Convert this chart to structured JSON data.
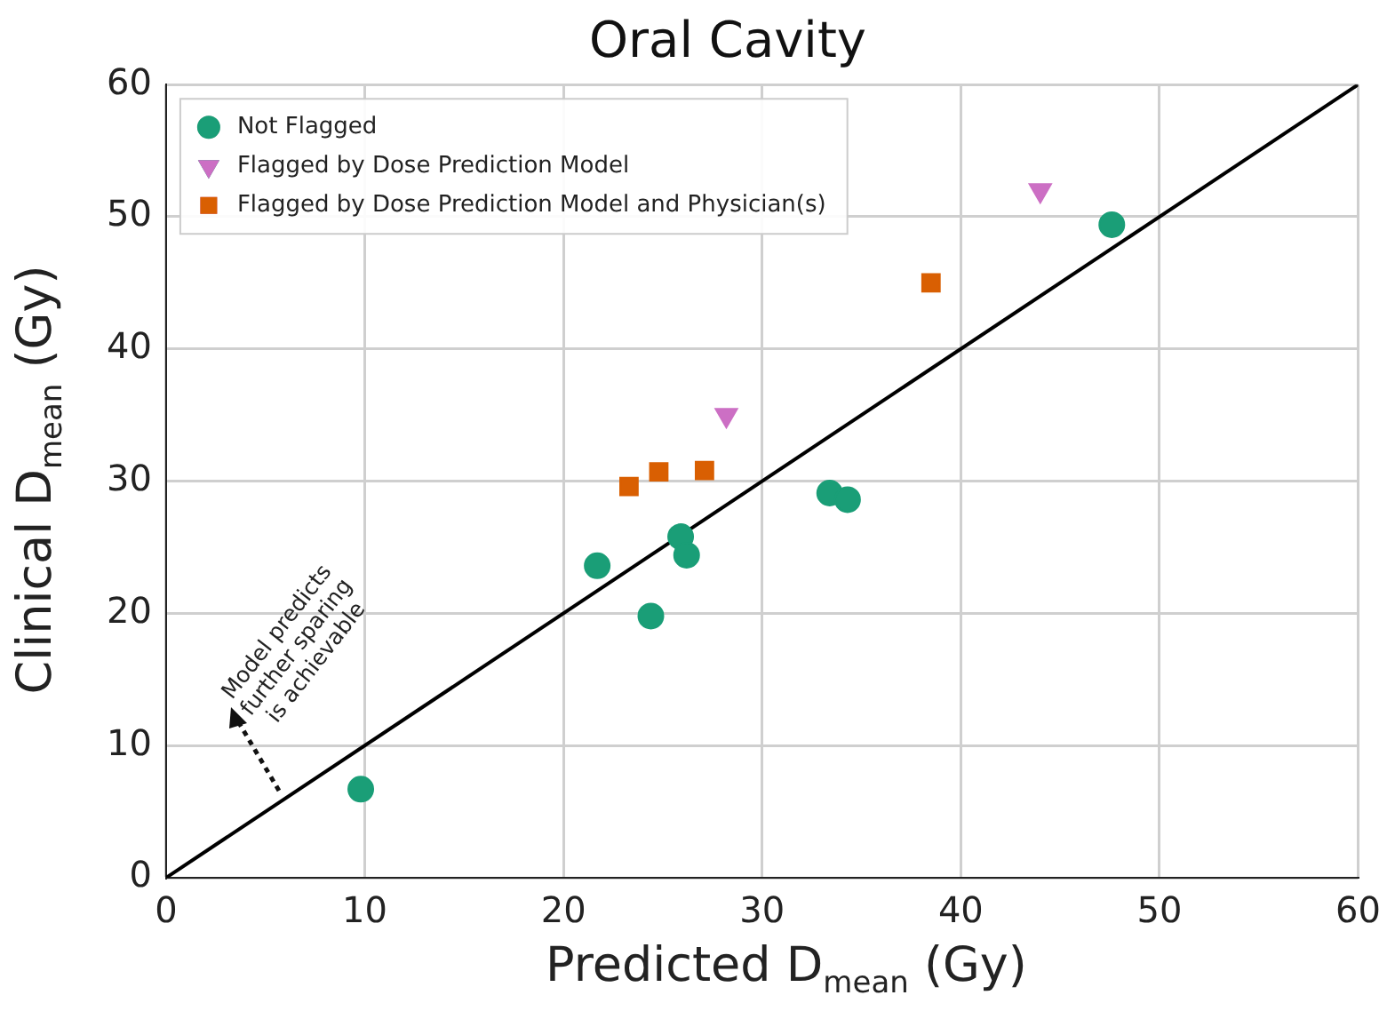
{
  "chart_data": {
    "type": "scatter",
    "title": "Oral Cavity",
    "xlabel": "Predicted D$_{mean}$ (Gy)",
    "ylabel": "Clinical D$_{mean}$ (Gy)",
    "xlim": [
      0,
      60
    ],
    "ylim": [
      0,
      60
    ],
    "xticks": [
      0,
      10,
      20,
      30,
      40,
      50,
      60
    ],
    "yticks": [
      0,
      10,
      20,
      30,
      40,
      50,
      60
    ],
    "grid": true,
    "legend": "top left",
    "annotations": [
      "Model predicts\nfurther sparing\nis achievable"
    ],
    "series": [
      {
        "name": "Not Flagged",
        "color": "#1a9e77",
        "marker": "circle",
        "x": [
          9.8,
          21.7,
          24.4,
          25.9,
          26.2,
          33.4,
          34.3,
          47.6
        ],
        "values": [
          6.7,
          23.6,
          19.8,
          25.8,
          24.4,
          29.1,
          28.6,
          49.4
        ]
      },
      {
        "name": "Flagged by Dose Prediction Model",
        "color": "#cc6fc4",
        "marker": "triangle",
        "x": [
          28.2,
          44.0
        ],
        "values": [
          35.0,
          52.0
        ]
      },
      {
        "name": "Flagged by Dose Prediction Model and Physician(s)",
        "color": "#d95f02",
        "marker": "square",
        "x": [
          23.3,
          24.8,
          27.1,
          38.5
        ],
        "values": [
          29.6,
          30.7,
          30.8,
          45.0
        ]
      },
      {
        "type": "line",
        "color": "#000000",
        "marker": "none",
        "x": [
          0,
          60
        ],
        "values": [
          0,
          60
        ]
      }
    ]
  }
}
